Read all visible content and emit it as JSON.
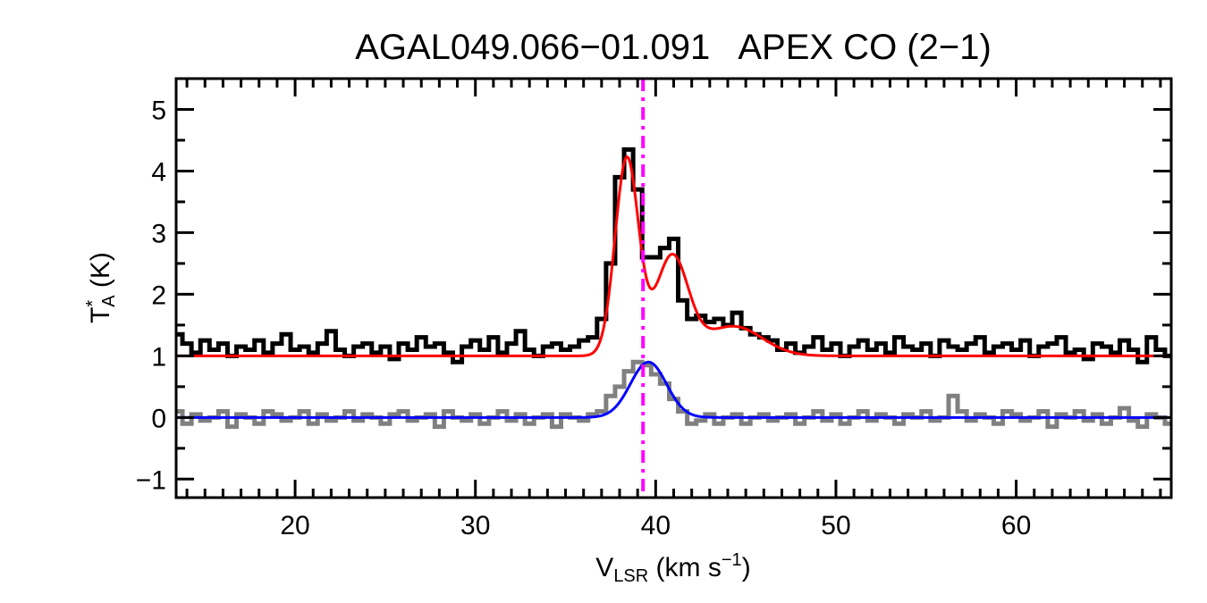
{
  "chart_data": {
    "type": "line",
    "title": "AGAL049.066−01.091   APEX CO (2−1)",
    "xlabel": {
      "main": "V",
      "sub": "LSR",
      "rest": " (km s",
      "sup": "−1",
      "end": ")"
    },
    "ylabel": {
      "main": "T",
      "sup": "*",
      "sub": "A",
      "rest": " (K)"
    },
    "xlim": [
      13.4,
      68.6
    ],
    "ylim": [
      -1.3,
      5.5
    ],
    "x_ticks": [
      20,
      30,
      40,
      50,
      60
    ],
    "x_tick_labels": [
      "20",
      "30",
      "40",
      "50",
      "60"
    ],
    "x_minor_step": 1,
    "y_ticks": [
      -1,
      0,
      1,
      2,
      3,
      4,
      5
    ],
    "y_tick_labels": [
      "−1",
      "0",
      "1",
      "2",
      "3",
      "4",
      "5"
    ],
    "y_minor_step": 0.5,
    "grid": false,
    "velocity_start": 13.5,
    "channel_width": 0.5,
    "series": [
      {
        "style": "histogram",
        "color": "#000000",
        "values": [
          1.35,
          1.2,
          1.05,
          1.25,
          1.1,
          1.2,
          1.0,
          1.15,
          1.1,
          1.25,
          1.05,
          1.2,
          1.35,
          1.1,
          1.15,
          1.05,
          1.2,
          1.4,
          1.1,
          1.0,
          1.15,
          1.2,
          1.05,
          1.15,
          0.95,
          1.2,
          1.1,
          1.3,
          1.15,
          1.2,
          1.05,
          0.9,
          1.15,
          1.25,
          1.1,
          1.3,
          1.05,
          1.2,
          1.4,
          1.1,
          1.0,
          1.15,
          1.2,
          1.1,
          1.15,
          1.25,
          1.3,
          1.6,
          2.5,
          3.9,
          4.35,
          3.7,
          2.6,
          2.6,
          2.75,
          2.9,
          1.9,
          1.6,
          1.65,
          1.55,
          1.6,
          1.5,
          1.7,
          1.45,
          1.35,
          1.3,
          1.25,
          1.1,
          1.2,
          1.05,
          1.15,
          1.3,
          1.1,
          1.2,
          1.0,
          1.15,
          1.25,
          1.1,
          1.2,
          1.05,
          1.3,
          1.15,
          1.1,
          1.2,
          1.0,
          1.25,
          1.15,
          1.1,
          1.2,
          1.3,
          1.05,
          1.15,
          1.2,
          1.1,
          1.25,
          1.0,
          1.15,
          1.2,
          1.3,
          1.05,
          1.1,
          0.95,
          1.2,
          1.15,
          1.05,
          1.25,
          1.1,
          0.9,
          1.3,
          1.1,
          1.0
        ]
      },
      {
        "style": "histogram",
        "color": "#808080",
        "values": [
          0.1,
          -0.1,
          0.05,
          -0.05,
          0.0,
          0.1,
          -0.15,
          0.05,
          0.0,
          -0.1,
          0.1,
          0.05,
          -0.05,
          0.0,
          0.1,
          -0.1,
          0.05,
          -0.05,
          0.0,
          0.1,
          -0.05,
          0.05,
          0.0,
          -0.1,
          0.05,
          0.1,
          -0.05,
          0.0,
          0.05,
          -0.15,
          0.1,
          0.0,
          -0.05,
          0.05,
          -0.1,
          0.0,
          0.1,
          -0.05,
          0.05,
          -0.1,
          0.0,
          0.05,
          -0.15,
          0.05,
          0.0,
          -0.05,
          0.05,
          0.1,
          0.35,
          0.5,
          0.75,
          0.9,
          0.85,
          0.7,
          0.55,
          0.3,
          0.1,
          -0.1,
          -0.05,
          0.05,
          -0.1,
          0.0,
          0.05,
          -0.1,
          0.0,
          0.05,
          -0.05,
          0.0,
          0.05,
          -0.1,
          0.0,
          0.1,
          -0.05,
          0.05,
          -0.1,
          0.0,
          0.1,
          -0.05,
          0.05,
          0.0,
          -0.1,
          0.05,
          0.0,
          0.1,
          -0.05,
          0.0,
          0.35,
          0.1,
          -0.05,
          0.05,
          0.0,
          -0.1,
          0.1,
          0.05,
          -0.05,
          0.0,
          0.1,
          -0.15,
          0.05,
          0.0,
          0.1,
          -0.05,
          0.05,
          -0.1,
          0.0,
          0.15,
          -0.05,
          -0.15,
          0.05,
          0.0,
          -0.1
        ]
      }
    ],
    "fits": [
      {
        "color": "#ff0000",
        "baseline": 1.0,
        "components": [
          {
            "amp": 3.2,
            "center": 38.4,
            "sigma": 0.65
          },
          {
            "amp": 1.6,
            "center": 40.9,
            "sigma": 0.9
          },
          {
            "amp": 0.48,
            "center": 44.3,
            "sigma": 1.6
          }
        ]
      },
      {
        "color": "#0000ff",
        "baseline": 0.0,
        "components": [
          {
            "amp": 0.9,
            "center": 39.6,
            "sigma": 1.0
          }
        ]
      }
    ],
    "vertical_line": {
      "x": 39.3,
      "color": "#ff00ff",
      "style": "dash-dot"
    }
  }
}
